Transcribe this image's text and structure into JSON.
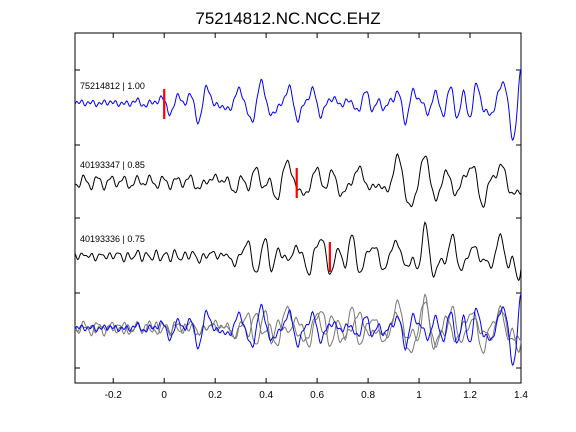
{
  "chart_data": {
    "type": "line",
    "title": "75214812.NC.NCC.EHZ",
    "xlabel": "",
    "ylabel": "",
    "xlim": [
      -0.35,
      1.4
    ],
    "x_ticks": [
      -0.2,
      0,
      0.2,
      0.4,
      0.6,
      0.8,
      1,
      1.2,
      1.4
    ],
    "x_tick_labels": [
      "-0.2",
      "0",
      "0.2",
      "0.4",
      "0.6",
      "0.8",
      "1",
      "1.2",
      "1.4"
    ],
    "grid": false,
    "colors": {
      "primary": "#0000ff",
      "secondary": "#000000",
      "overlay": "#777777",
      "pick": "#ff0000"
    },
    "traces": [
      {
        "label": "75214812 | 1.00",
        "color": "#0000ff",
        "baseline": 0,
        "pick": 0.0,
        "seed": 3,
        "onset": -0.05,
        "amp": 1.0
      },
      {
        "label": "40193347 | 0.85",
        "color": "#000000",
        "baseline": 1,
        "pick": 0.52,
        "seed": 11,
        "onset": 0.05,
        "amp": 0.9
      },
      {
        "label": "40193336 | 0.75",
        "color": "#000000",
        "baseline": 2,
        "pick": 0.65,
        "seed": 23,
        "onset": 0.1,
        "amp": 0.9
      }
    ],
    "overlay": {
      "traces": [
        "75214812 | 1.00",
        "40193347 | 0.85",
        "40193336 | 0.75"
      ]
    }
  }
}
